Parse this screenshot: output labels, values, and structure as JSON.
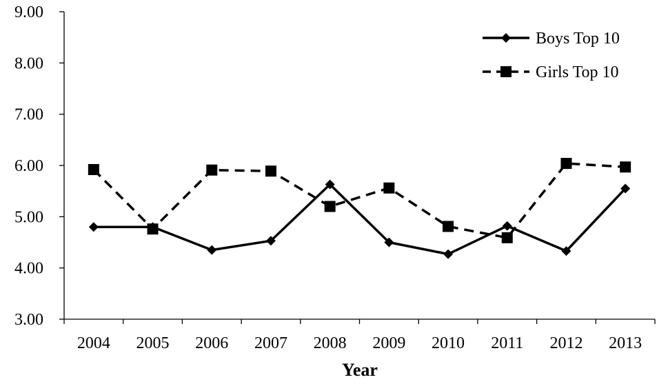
{
  "chart_data": {
    "type": "line",
    "title": "",
    "xlabel": "Year",
    "ylabel": "",
    "x": [
      "2004",
      "2005",
      "2006",
      "2007",
      "2008",
      "2009",
      "2010",
      "2011",
      "2012",
      "2013"
    ],
    "ylim": [
      3.0,
      9.0
    ],
    "yticks": [
      "3.00",
      "4.00",
      "5.00",
      "6.00",
      "7.00",
      "8.00",
      "9.00"
    ],
    "grid": false,
    "legend_position": "top-right",
    "series": [
      {
        "name": "Boys Top 10",
        "marker": "diamond",
        "line_style": "solid",
        "color": "#000000",
        "values": [
          4.8,
          4.8,
          4.35,
          4.53,
          5.63,
          4.5,
          4.27,
          4.82,
          4.33,
          5.55
        ]
      },
      {
        "name": "Girls Top 10",
        "marker": "square",
        "line_style": "dashed",
        "color": "#000000",
        "values": [
          5.92,
          4.76,
          5.91,
          5.89,
          5.2,
          5.56,
          4.81,
          4.59,
          6.04,
          5.97
        ]
      }
    ]
  }
}
